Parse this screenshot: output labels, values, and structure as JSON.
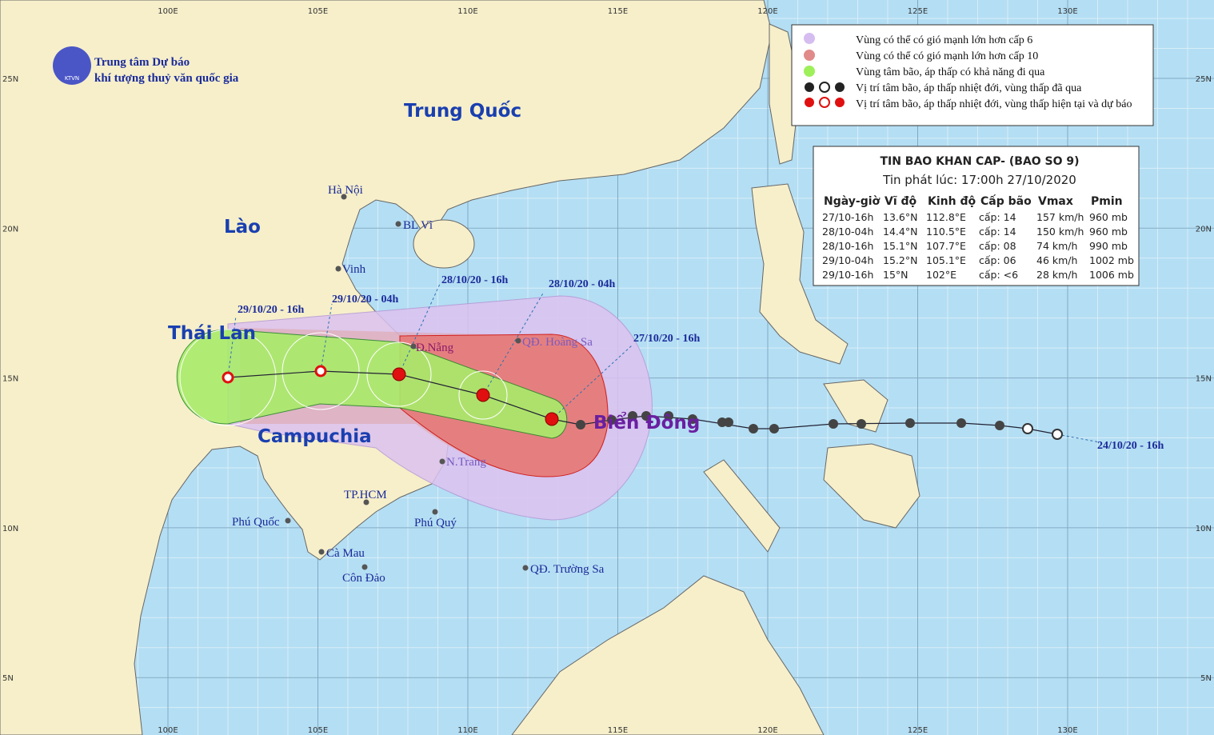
{
  "header": {
    "org_line1": "Trung tâm Dự báo",
    "org_line2": "khí tượng thuỷ văn quốc gia",
    "logo_text": "KTVN"
  },
  "axes": {
    "lon_labels": [
      "100E",
      "105E",
      "110E",
      "115E",
      "120E",
      "125E",
      "130E"
    ],
    "lat_labels": [
      "25N",
      "20N",
      "15N",
      "10N",
      "5N"
    ]
  },
  "countries": [
    "Trung Quốc",
    "Lào",
    "Thái Lan",
    "Campuchia",
    "Biển Đông"
  ],
  "places": [
    "Hà Nội",
    "BL Vĩ",
    "Vinh",
    "Đ.Nẵng",
    "QĐ. Hoàng Sa",
    "N.Trang",
    "TP.HCM",
    "Phú Quốc",
    "Phú Quý",
    "Cà Mau",
    "Côn Đảo",
    "QĐ. Trường Sa"
  ],
  "track_times": [
    "29/10/20 - 16h",
    "29/10/20 - 04h",
    "28/10/20 - 16h",
    "28/10/20 - 04h",
    "27/10/20 - 16h",
    "24/10/20 - 16h"
  ],
  "legend": [
    "Vùng có thể có gió mạnh lớn hơn cấp 6",
    "Vùng có thể có gió mạnh lớn hơn cấp 10",
    "Vùng tâm bão, áp thấp có khả năng đi qua",
    "Vị trí tâm bão, áp thấp nhiệt đới, vùng thấp đã qua",
    "Vị trí tâm bão, áp thấp nhiệt đới, vùng thấp hiện tại và dự báo"
  ],
  "bulletin": {
    "title": "TIN BAO KHAN CAP- (BAO SO 9)",
    "issued": "Tin phát lúc: 17:00h 27/10/2020",
    "columns": [
      "Ngày-giờ",
      "Vĩ độ",
      "Kinh độ",
      "Cấp bão",
      "Vmax",
      "Pmin"
    ],
    "rows": [
      [
        "27/10-16h",
        "13.6°N",
        "112.8°E",
        "cấp: 14",
        "157 km/h",
        "960 mb"
      ],
      [
        "28/10-04h",
        "14.4°N",
        "110.5°E",
        "cấp: 14",
        "150 km/h",
        "960 mb"
      ],
      [
        "28/10-16h",
        "15.1°N",
        "107.7°E",
        "cấp: 08",
        "74 km/h",
        "990 mb"
      ],
      [
        "29/10-04h",
        "15.2°N",
        "105.1°E",
        "cấp: 06",
        "46 km/h",
        "1002 mb"
      ],
      [
        "29/10-16h",
        "15°N",
        "102°E",
        "cấp: <6",
        "28 km/h",
        "1006 mb"
      ]
    ]
  }
}
